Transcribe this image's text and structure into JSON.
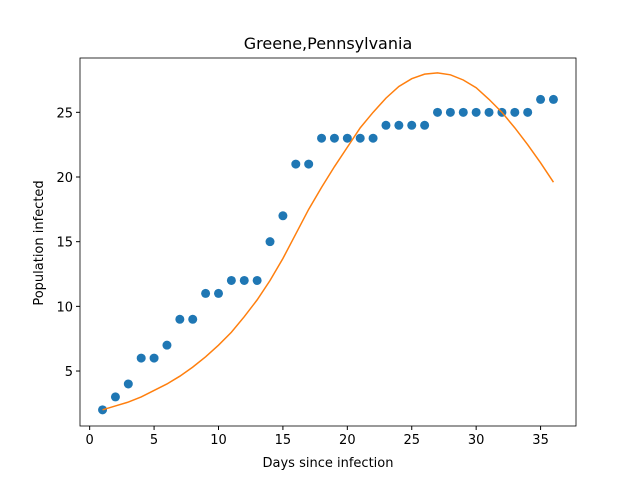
{
  "chart_data": {
    "type": "scatter",
    "title": "Greene,Pennsylvania",
    "x_label": "Days since infection",
    "y_label": "Population infected",
    "x": [
      1,
      2,
      3,
      4,
      5,
      6,
      7,
      8,
      9,
      10,
      11,
      12,
      13,
      14,
      15,
      16,
      17,
      18,
      19,
      20,
      21,
      22,
      23,
      24,
      25,
      26,
      27,
      28,
      29,
      30,
      31,
      32,
      33,
      34,
      35,
      36
    ],
    "series": [
      {
        "type": "scatter",
        "color": "#1f77b4",
        "values": [
          2,
          3,
          4,
          6,
          6,
          7,
          9,
          9,
          11,
          11,
          12,
          12,
          12,
          15,
          17,
          21,
          21,
          23,
          23,
          23,
          23,
          23,
          24,
          24,
          24,
          24,
          25,
          25,
          25,
          25,
          25,
          25,
          25,
          25,
          26,
          26
        ]
      },
      {
        "type": "line",
        "color": "#ff7f0e",
        "values": [
          2.0,
          2.3,
          2.6,
          3.0,
          3.5,
          4.0,
          4.6,
          5.3,
          6.1,
          7.0,
          8.0,
          9.2,
          10.5,
          12.0,
          13.7,
          15.6,
          17.5,
          19.2,
          20.8,
          22.3,
          23.8,
          25.0,
          26.1,
          27.0,
          27.6,
          27.95,
          28.05,
          27.9,
          27.5,
          26.9,
          26.0,
          25.0,
          23.8,
          22.5,
          21.1,
          19.6
        ]
      }
    ],
    "xlim": [
      -0.75,
      37.75
    ],
    "xticks": [
      0,
      5,
      10,
      15,
      20,
      25,
      30,
      35
    ],
    "ylim": [
      0.75,
      29.2
    ],
    "yticks": [
      5,
      10,
      15,
      20,
      25
    ]
  }
}
